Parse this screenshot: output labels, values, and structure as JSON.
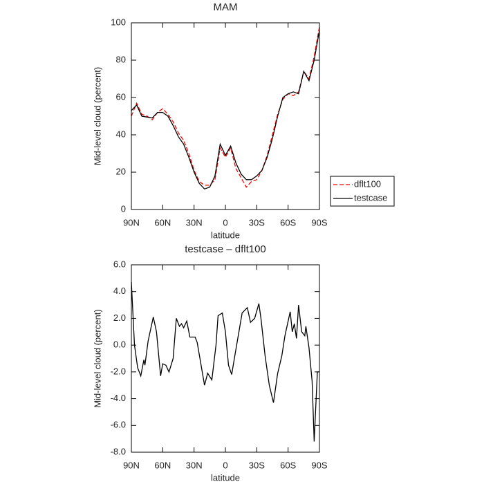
{
  "chart_data": [
    {
      "type": "line",
      "title": "MAM",
      "xlabel": "latitude",
      "ylabel": "Mid-level cloud (percent)",
      "x": [
        90,
        85,
        80,
        75,
        70,
        65,
        60,
        55,
        50,
        45,
        40,
        35,
        30,
        25,
        20,
        15,
        10,
        5,
        0,
        -5,
        -10,
        -15,
        -20,
        -25,
        -30,
        -35,
        -40,
        -45,
        -50,
        -55,
        -60,
        -65,
        -70,
        -75,
        -80,
        -85,
        -90
      ],
      "series": [
        {
          "name": "dflt100",
          "color": "#ff0000",
          "dash": true,
          "values": [
            50,
            57,
            51,
            50,
            48,
            52,
            54,
            51,
            47,
            41,
            37,
            30,
            21,
            15,
            13,
            13,
            16,
            33,
            28,
            33,
            22,
            17,
            12,
            15,
            16,
            21,
            29,
            40,
            51,
            59,
            62,
            61,
            63,
            74,
            70,
            82,
            98
          ]
        },
        {
          "name": "testcase",
          "color": "#000000",
          "dash": false,
          "values": [
            53,
            56,
            50,
            49.5,
            49,
            52,
            52,
            50,
            45,
            39,
            35,
            28,
            20,
            14,
            11,
            12,
            18,
            35,
            29,
            34,
            25,
            19,
            16,
            16,
            18,
            21,
            28,
            38,
            50,
            60,
            62,
            63,
            62,
            74,
            69,
            80,
            96
          ]
        }
      ],
      "xlim": [
        90,
        -90
      ],
      "xticks": [
        {
          "value": 90,
          "label": "90N"
        },
        {
          "value": 60,
          "label": "60N"
        },
        {
          "value": 30,
          "label": "30N"
        },
        0,
        {
          "value": -30,
          "label": "30S"
        },
        {
          "value": -60,
          "label": "60S"
        },
        {
          "value": -90,
          "label": "90S"
        }
      ],
      "ylim": [
        0,
        100
      ],
      "yticks": [
        0,
        20,
        40,
        60,
        80,
        100
      ],
      "legend": "right"
    },
    {
      "type": "line",
      "title": "testcase – dflt100",
      "xlabel": "latitude",
      "ylabel": "Mid-level cloud (percent)",
      "x": [
        90,
        87,
        84,
        81,
        78,
        77,
        74,
        69,
        66,
        62,
        60,
        57,
        54,
        50,
        47,
        44,
        42,
        40,
        37,
        34,
        29,
        27,
        20,
        17,
        13,
        9,
        7,
        3,
        0,
        -3,
        -6,
        -9,
        -16,
        -21,
        -24,
        -28,
        -32,
        -34,
        -38,
        -42,
        -46,
        -50,
        -54,
        -57,
        -62,
        -64,
        -66,
        -68,
        -70,
        -73,
        -76,
        -77,
        -80,
        -83,
        -85,
        -88,
        -90
      ],
      "values": [
        4.7,
        0.0,
        -1.7,
        -2.3,
        -1.1,
        -1.5,
        0.3,
        2.1,
        1.0,
        -2.3,
        -1.4,
        -1.5,
        -2.0,
        -1.0,
        2.0,
        1.4,
        1.6,
        1.3,
        1.8,
        0.6,
        0.6,
        0.2,
        -3.0,
        -2.1,
        -2.6,
        0.0,
        2.2,
        2.4,
        1.0,
        -1.5,
        -2.2,
        -0.8,
        2.4,
        2.8,
        1.7,
        2.0,
        3.1,
        2.0,
        -0.8,
        -3.0,
        -4.3,
        -2.1,
        -0.8,
        0.7,
        2.5,
        1.0,
        1.6,
        0.5,
        3.0,
        1.0,
        0.7,
        1.4,
        -0.2,
        -2.7,
        -7.2,
        -2.0,
        -2.0
      ],
      "color": "#000000",
      "xlim": [
        90,
        -90
      ],
      "xticks": [
        {
          "value": 90,
          "label": "90N"
        },
        {
          "value": 60,
          "label": "60N"
        },
        {
          "value": 30,
          "label": "30N"
        },
        0,
        {
          "value": -30,
          "label": "30S"
        },
        {
          "value": -60,
          "label": "60S"
        },
        {
          "value": -90,
          "label": "90S"
        }
      ],
      "ylim": [
        -8,
        6
      ],
      "yticks": [
        {
          "value": -8,
          "label": "-8.0"
        },
        {
          "value": -6,
          "label": "-6.0"
        },
        {
          "value": -4,
          "label": "-4.0"
        },
        {
          "value": -2,
          "label": "-2.0"
        },
        {
          "value": 0,
          "label": "0.0"
        },
        {
          "value": 2,
          "label": "2.0"
        },
        {
          "value": 4,
          "label": "4.0"
        },
        {
          "value": 6,
          "label": "6.0"
        }
      ]
    }
  ]
}
